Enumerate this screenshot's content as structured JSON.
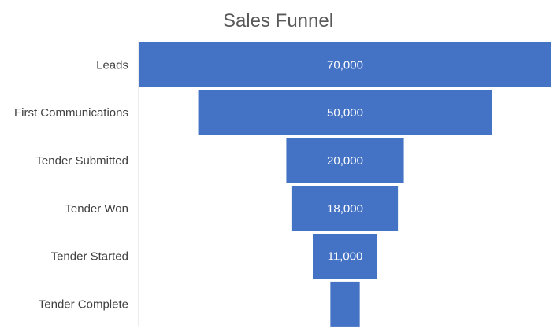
{
  "chart_data": {
    "type": "bar",
    "subtype": "funnel",
    "title": "Sales Funnel",
    "categories": [
      "Leads",
      "First Communications",
      "Tender Submitted",
      "Tender Won",
      "Tender Started",
      "Tender Complete"
    ],
    "values": [
      70000,
      50000,
      20000,
      18000,
      11000,
      5000
    ],
    "value_labels": [
      "70,000",
      "50,000",
      "20,000",
      "18,000",
      "11,000",
      ""
    ],
    "xlim": [
      0,
      70000
    ],
    "grid": false,
    "legend": "none",
    "colors": {
      "bar": "#4472C4",
      "bar_label": "#FFFFFF",
      "axis_line": "#D9D9D9",
      "title": "#595959",
      "category_label": "#404040"
    }
  }
}
